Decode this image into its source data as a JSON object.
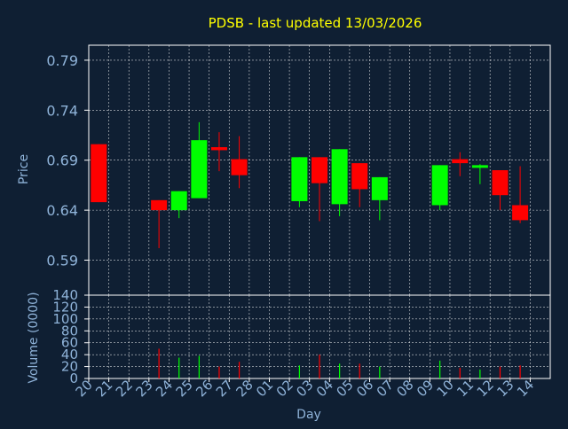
{
  "colors": {
    "background": "#0f1f33",
    "plot_border": "#ffffff",
    "grid": "#ffffff",
    "title": "#ffff00",
    "axis_text": "#8fb3d9",
    "up": "#00ff00",
    "down": "#ff0000"
  },
  "chart_data": [
    {
      "type": "candlestick",
      "title": "PDSB - last updated 13/03/2026",
      "ylabel": "Price",
      "ylim": [
        0.555,
        0.805
      ],
      "yticks": [
        "0.59",
        "0.64",
        "0.69",
        "0.74",
        "0.79"
      ],
      "ytick_values": [
        0.59,
        0.64,
        0.69,
        0.74,
        0.79
      ],
      "grid": true,
      "candles": [
        {
          "day": "20",
          "open": 0.706,
          "close": 0.648,
          "high": 0.706,
          "low": 0.648
        },
        {
          "day": "23",
          "open": 0.65,
          "close": 0.64,
          "high": 0.65,
          "low": 0.602
        },
        {
          "day": "24",
          "open": 0.64,
          "close": 0.659,
          "high": 0.659,
          "low": 0.632
        },
        {
          "day": "25",
          "open": 0.652,
          "close": 0.71,
          "high": 0.728,
          "low": 0.652
        },
        {
          "day": "26",
          "open": 0.703,
          "close": 0.7,
          "high": 0.718,
          "low": 0.679
        },
        {
          "day": "27",
          "open": 0.691,
          "close": 0.675,
          "high": 0.714,
          "low": 0.662
        },
        {
          "day": "02",
          "open": 0.649,
          "close": 0.693,
          "high": 0.693,
          "low": 0.643
        },
        {
          "day": "03",
          "open": 0.693,
          "close": 0.667,
          "high": 0.693,
          "low": 0.629
        },
        {
          "day": "04",
          "open": 0.646,
          "close": 0.701,
          "high": 0.701,
          "low": 0.634
        },
        {
          "day": "05",
          "open": 0.687,
          "close": 0.661,
          "high": 0.687,
          "low": 0.643
        },
        {
          "day": "06",
          "open": 0.65,
          "close": 0.673,
          "high": 0.673,
          "low": 0.63
        },
        {
          "day": "09",
          "open": 0.645,
          "close": 0.685,
          "high": 0.685,
          "low": 0.64
        },
        {
          "day": "10",
          "open": 0.691,
          "close": 0.687,
          "high": 0.698,
          "low": 0.674
        },
        {
          "day": "11",
          "open": 0.683,
          "close": 0.685,
          "high": 0.686,
          "low": 0.666
        },
        {
          "day": "12",
          "open": 0.68,
          "close": 0.655,
          "high": 0.68,
          "low": 0.64
        },
        {
          "day": "13",
          "open": 0.645,
          "close": 0.63,
          "high": 0.684,
          "low": 0.627
        }
      ]
    },
    {
      "type": "bar",
      "ylabel": "Volume (0000)",
      "xlabel": "Day",
      "ylim": [
        0,
        140
      ],
      "yticks": [
        "0",
        "20",
        "40",
        "60",
        "80",
        "100",
        "120",
        "140"
      ],
      "ytick_values": [
        0,
        20,
        40,
        60,
        80,
        100,
        120,
        140
      ],
      "categories": [
        "20",
        "21",
        "22",
        "23",
        "24",
        "25",
        "26",
        "27",
        "28",
        "01",
        "02",
        "03",
        "04",
        "05",
        "06",
        "07",
        "08",
        "09",
        "10",
        "11",
        "12",
        "13",
        "14"
      ],
      "volumes": [
        {
          "day": "23",
          "value": 50,
          "direction": "down"
        },
        {
          "day": "24",
          "value": 35,
          "direction": "up"
        },
        {
          "day": "25",
          "value": 38,
          "direction": "up"
        },
        {
          "day": "26",
          "value": 20,
          "direction": "down"
        },
        {
          "day": "27",
          "value": 28,
          "direction": "down"
        },
        {
          "day": "02",
          "value": 22,
          "direction": "up"
        },
        {
          "day": "03",
          "value": 40,
          "direction": "down"
        },
        {
          "day": "04",
          "value": 25,
          "direction": "up"
        },
        {
          "day": "05",
          "value": 25,
          "direction": "down"
        },
        {
          "day": "06",
          "value": 20,
          "direction": "up"
        },
        {
          "day": "09",
          "value": 30,
          "direction": "up"
        },
        {
          "day": "10",
          "value": 18,
          "direction": "down"
        },
        {
          "day": "11",
          "value": 15,
          "direction": "up"
        },
        {
          "day": "12",
          "value": 20,
          "direction": "down"
        },
        {
          "day": "13",
          "value": 22,
          "direction": "down"
        }
      ]
    }
  ]
}
